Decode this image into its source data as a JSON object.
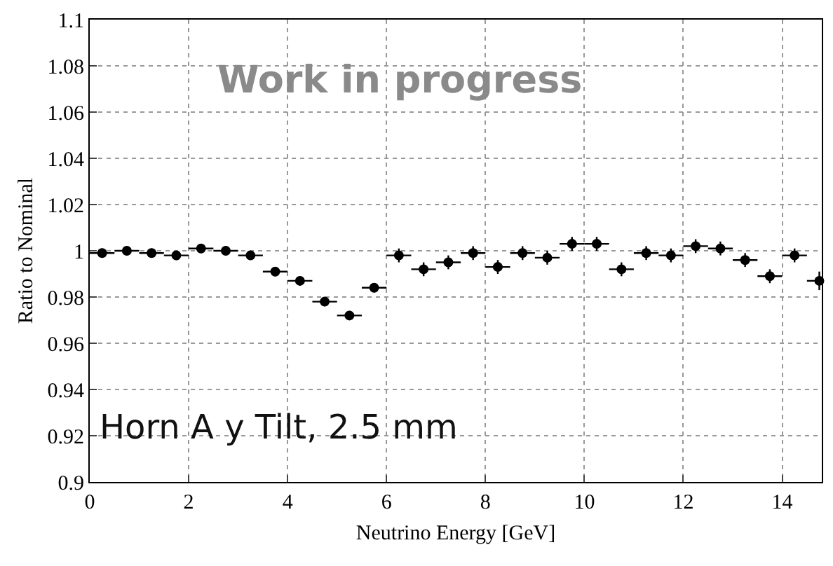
{
  "chart_data": {
    "type": "scatter",
    "xlabel": "Neutrino Energy [GeV]",
    "ylabel": "Ratio to Nominal",
    "annotations": [
      "Work in progress",
      "Horn A y Tilt, 2.5 mm"
    ],
    "x": [
      0.25,
      0.75,
      1.25,
      1.75,
      2.25,
      2.75,
      3.25,
      3.75,
      4.25,
      4.75,
      5.25,
      5.75,
      6.25,
      6.75,
      7.25,
      7.75,
      8.25,
      8.75,
      9.25,
      9.75,
      10.25,
      10.75,
      11.25,
      11.75,
      12.25,
      12.75,
      13.25,
      13.75,
      14.25,
      14.75
    ],
    "values": [
      0.999,
      1.0,
      0.999,
      0.998,
      1.001,
      1.0,
      0.998,
      0.991,
      0.987,
      0.978,
      0.972,
      0.984,
      0.998,
      0.992,
      0.995,
      0.999,
      0.993,
      0.999,
      0.997,
      1.003,
      1.003,
      0.992,
      0.999,
      0.998,
      1.002,
      1.001,
      0.996,
      0.989,
      0.998,
      0.987
    ],
    "errors": [
      0.002,
      0.002,
      0.002,
      0.002,
      0.002,
      0.002,
      0.002,
      0.002,
      0.002,
      0.002,
      0.002,
      0.002,
      0.003,
      0.003,
      0.003,
      0.003,
      0.003,
      0.003,
      0.003,
      0.003,
      0.003,
      0.003,
      0.003,
      0.003,
      0.003,
      0.003,
      0.003,
      0.003,
      0.003,
      0.004
    ],
    "xerrors": [
      0.25,
      0.25,
      0.25,
      0.25,
      0.25,
      0.25,
      0.25,
      0.25,
      0.25,
      0.25,
      0.25,
      0.25,
      0.25,
      0.25,
      0.25,
      0.25,
      0.25,
      0.25,
      0.25,
      0.25,
      0.25,
      0.25,
      0.25,
      0.25,
      0.25,
      0.25,
      0.25,
      0.25,
      0.25,
      [
        14.5,
        14.8
      ]
    ],
    "color": "#000000",
    "marker": "circle",
    "xlim": [
      0,
      14.8
    ],
    "xticks": [
      0,
      2,
      4,
      6,
      8,
      10,
      12,
      14
    ],
    "ylim": [
      0.9,
      1.1
    ],
    "yticks": [
      0.9,
      0.92,
      0.94,
      0.96,
      0.98,
      1,
      1.02,
      1.04,
      1.06,
      1.08,
      1.1
    ],
    "grid": true
  }
}
